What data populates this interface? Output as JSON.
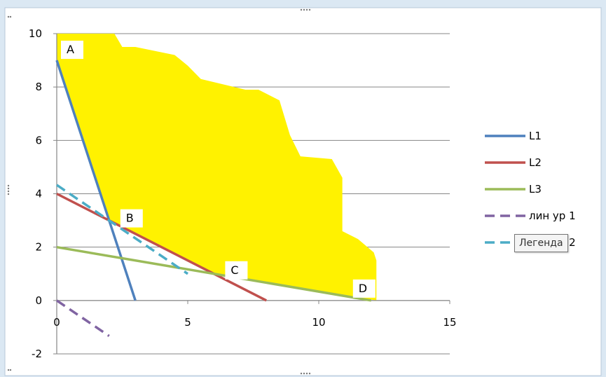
{
  "chart_data": {
    "type": "line",
    "xlim": [
      0,
      15
    ],
    "ylim": [
      -2,
      10
    ],
    "x_ticks": [
      0,
      5,
      10,
      15
    ],
    "y_ticks": [
      -2,
      0,
      2,
      4,
      6,
      8,
      10
    ],
    "grid": "horizontal",
    "legend_position": "right",
    "feasible_region": {
      "color": "#FFF200",
      "boundary": [
        [
          0,
          10
        ],
        [
          2.2,
          10
        ],
        [
          2.5,
          9.5
        ],
        [
          3,
          9.5
        ],
        [
          4.5,
          9.2
        ],
        [
          5,
          8.8
        ],
        [
          5.5,
          8.3
        ],
        [
          7.2,
          7.9
        ],
        [
          7.7,
          7.9
        ],
        [
          8.5,
          7.5
        ],
        [
          8.9,
          6.2
        ],
        [
          9.3,
          5.4
        ],
        [
          10.5,
          5.3
        ],
        [
          10.9,
          4.6
        ],
        [
          10.9,
          2.6
        ],
        [
          11.5,
          2.3
        ],
        [
          12.1,
          1.8
        ],
        [
          12.2,
          1.5
        ],
        [
          12.2,
          0
        ],
        [
          6,
          1
        ],
        [
          2,
          3
        ],
        [
          0,
          9
        ]
      ]
    },
    "series": [
      {
        "name": "L1",
        "color": "#4F81BD",
        "style": "solid",
        "x": [
          0,
          3
        ],
        "y": [
          9,
          0
        ]
      },
      {
        "name": "L2",
        "color": "#C0504D",
        "style": "solid",
        "x": [
          0,
          8
        ],
        "y": [
          4,
          0
        ]
      },
      {
        "name": "L3",
        "color": "#9BBB59",
        "style": "solid",
        "x": [
          0,
          12
        ],
        "y": [
          2,
          0
        ]
      },
      {
        "name": "лин ур 1",
        "color": "#8064A2",
        "style": "dashed",
        "x": [
          0,
          2
        ],
        "y": [
          0,
          -1.33
        ]
      },
      {
        "name": "лин ур 2",
        "color": "#4BACC6",
        "style": "dashed",
        "x": [
          0,
          5
        ],
        "y": [
          4.33,
          1
        ]
      }
    ],
    "point_labels": [
      {
        "text": "A",
        "x": 0,
        "y": 9
      },
      {
        "text": "B",
        "x": 2,
        "y": 3
      },
      {
        "text": "C",
        "x": 6,
        "y": 1
      },
      {
        "text": "D",
        "x": 12,
        "y": 0
      }
    ]
  },
  "tooltip": {
    "text": "Легенда"
  },
  "icons": {
    "frame_handles": "resize-handle-icon"
  }
}
